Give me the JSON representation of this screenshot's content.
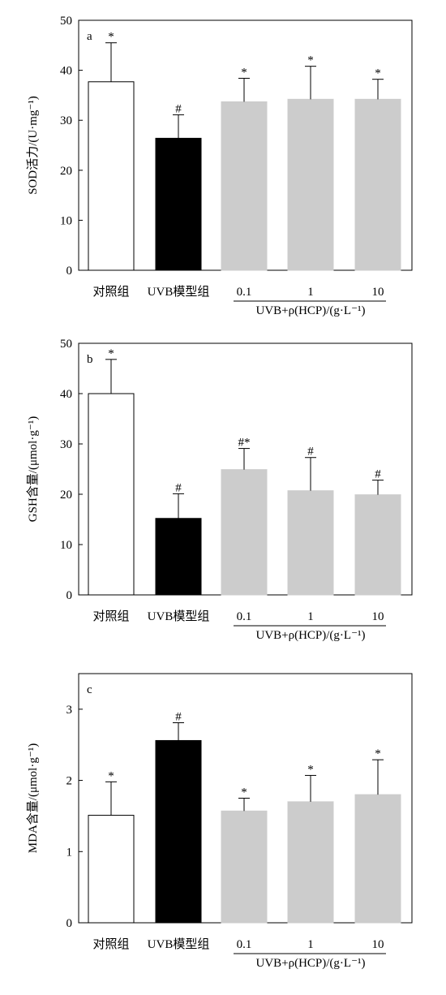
{
  "chart_data": [
    {
      "type": "bar",
      "panel_label": "a",
      "ylabel": "SOD活力/(U·mg⁻¹)",
      "ylim": [
        0,
        50
      ],
      "yticks": [
        0,
        10,
        20,
        30,
        40,
        50
      ],
      "categories": [
        "对照组",
        "UVB模型组",
        "0.1",
        "1",
        "10"
      ],
      "group_label": "UVB+ρ(HCP)/(g·L⁻¹)",
      "values": [
        37.7,
        26.4,
        33.7,
        34.2,
        34.2
      ],
      "errors": [
        7.8,
        4.7,
        4.7,
        6.6,
        4.0
      ],
      "annotations": [
        "*",
        "#",
        "*",
        "*",
        "*"
      ],
      "bar_colors": [
        "#ffffff",
        "#000000",
        "#cccccc",
        "#cccccc",
        "#cccccc"
      ]
    },
    {
      "type": "bar",
      "panel_label": "b",
      "ylabel": "GSH含量/(μmol·g⁻¹)",
      "ylim": [
        0,
        50
      ],
      "yticks": [
        0,
        10,
        20,
        30,
        40,
        50
      ],
      "categories": [
        "对照组",
        "UVB模型组",
        "0.1",
        "1",
        "10"
      ],
      "group_label": "UVB+ρ(HCP)/(g·L⁻¹)",
      "values": [
        40.0,
        15.2,
        24.9,
        20.7,
        19.9
      ],
      "errors": [
        6.8,
        4.9,
        4.2,
        6.6,
        2.9
      ],
      "annotations": [
        "*",
        "#",
        "#*",
        "#",
        "#"
      ],
      "bar_colors": [
        "#ffffff",
        "#000000",
        "#cccccc",
        "#cccccc",
        "#cccccc"
      ]
    },
    {
      "type": "bar",
      "panel_label": "c",
      "ylabel": "MDA含量/(μmol·g⁻¹)",
      "ylim": [
        0,
        3.5
      ],
      "yticks": [
        0,
        1,
        2,
        3
      ],
      "categories": [
        "对照组",
        "UVB模型组",
        "0.1",
        "1",
        "10"
      ],
      "group_label": "UVB+ρ(HCP)/(g·L⁻¹)",
      "values": [
        1.51,
        2.56,
        1.57,
        1.7,
        1.8
      ],
      "errors": [
        0.47,
        0.25,
        0.18,
        0.37,
        0.49
      ],
      "annotations": [
        "*",
        "#",
        "*",
        "*",
        "*"
      ],
      "bar_colors": [
        "#ffffff",
        "#000000",
        "#cccccc",
        "#cccccc",
        "#cccccc"
      ]
    }
  ]
}
